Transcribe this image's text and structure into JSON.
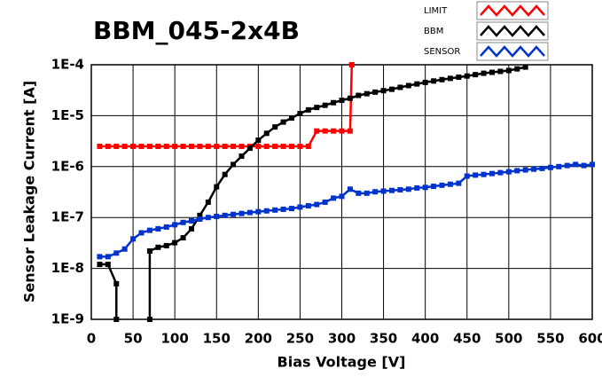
{
  "chart_data": {
    "type": "line",
    "title": "BBM_045-2x4B",
    "xlabel": "Bias Voltage [V]",
    "ylabel": "Sensor Leakage Current [A]",
    "xlim": [
      0,
      600
    ],
    "xticks": [
      0,
      50,
      100,
      150,
      200,
      250,
      300,
      350,
      400,
      450,
      500,
      550,
      600
    ],
    "ylim": [
      1e-09,
      0.0001
    ],
    "log_y": true,
    "grid": true,
    "legend": "top-right",
    "yticks": [
      {
        "value": 1e-09,
        "label": "1E-9"
      },
      {
        "value": 1e-08,
        "label": "1E-8"
      },
      {
        "value": 1e-07,
        "label": "1E-7"
      },
      {
        "value": 1e-06,
        "label": "1E-6"
      },
      {
        "value": 1e-05,
        "label": "1E-5"
      },
      {
        "value": 0.0001,
        "label": "1E-4"
      }
    ],
    "series": [
      {
        "name": "LIMIT",
        "color": "#ff0000",
        "x": [
          10,
          20,
          30,
          40,
          50,
          60,
          70,
          80,
          90,
          100,
          110,
          120,
          130,
          140,
          150,
          160,
          170,
          180,
          190,
          200,
          210,
          220,
          230,
          240,
          250,
          260,
          270,
          280,
          290,
          300,
          310,
          312
        ],
        "values": [
          2.5e-06,
          2.5e-06,
          2.5e-06,
          2.5e-06,
          2.5e-06,
          2.5e-06,
          2.5e-06,
          2.5e-06,
          2.5e-06,
          2.5e-06,
          2.5e-06,
          2.5e-06,
          2.5e-06,
          2.5e-06,
          2.5e-06,
          2.5e-06,
          2.5e-06,
          2.5e-06,
          2.5e-06,
          2.5e-06,
          2.5e-06,
          2.5e-06,
          2.5e-06,
          2.5e-06,
          2.5e-06,
          2.5e-06,
          5e-06,
          5e-06,
          5e-06,
          5e-06,
          5e-06,
          0.0001
        ]
      },
      {
        "name": "BBM",
        "color": "#000000",
        "x": [
          10,
          20,
          30,
          30,
          null,
          70,
          70,
          80,
          90,
          100,
          110,
          120,
          130,
          140,
          150,
          160,
          170,
          180,
          190,
          200,
          210,
          220,
          230,
          240,
          250,
          260,
          270,
          280,
          290,
          300,
          310,
          320,
          330,
          340,
          350,
          360,
          370,
          380,
          390,
          400,
          410,
          420,
          430,
          440,
          450,
          460,
          470,
          480,
          490,
          500,
          510,
          520
        ],
        "values": [
          1.2e-08,
          1.2e-08,
          5e-09,
          1e-09,
          null,
          1e-09,
          2.2e-08,
          2.6e-08,
          2.8e-08,
          3.2e-08,
          4e-08,
          6e-08,
          1.1e-07,
          2e-07,
          4e-07,
          7e-07,
          1.1e-06,
          1.6e-06,
          2.3e-06,
          3.3e-06,
          4.5e-06,
          6e-06,
          7.5e-06,
          9e-06,
          1.1e-05,
          1.3e-05,
          1.45e-05,
          1.6e-05,
          1.8e-05,
          2e-05,
          2.2e-05,
          2.5e-05,
          2.7e-05,
          2.9e-05,
          3.1e-05,
          3.3e-05,
          3.6e-05,
          3.9e-05,
          4.2e-05,
          4.5e-05,
          4.8e-05,
          5.1e-05,
          5.4e-05,
          5.7e-05,
          6e-05,
          6.4e-05,
          6.8e-05,
          7.1e-05,
          7.4e-05,
          7.7e-05,
          8.3e-05,
          9e-05
        ]
      },
      {
        "name": "SENSOR",
        "color": "#0033cc",
        "x": [
          10,
          20,
          30,
          40,
          50,
          60,
          70,
          80,
          90,
          100,
          110,
          120,
          130,
          140,
          150,
          160,
          170,
          180,
          190,
          200,
          210,
          220,
          230,
          240,
          250,
          260,
          270,
          280,
          290,
          300,
          310,
          320,
          330,
          340,
          350,
          360,
          370,
          380,
          390,
          400,
          410,
          420,
          430,
          440,
          450,
          460,
          470,
          480,
          490,
          500,
          510,
          520,
          530,
          540,
          550,
          560,
          570,
          580,
          590,
          600
        ],
        "values": [
          1.7e-08,
          1.7e-08,
          2e-08,
          2.4e-08,
          3.8e-08,
          5e-08,
          5.6e-08,
          6e-08,
          6.5e-08,
          7.2e-08,
          8e-08,
          8.6e-08,
          9.3e-08,
          1e-07,
          1.05e-07,
          1.1e-07,
          1.15e-07,
          1.2e-07,
          1.25e-07,
          1.3e-07,
          1.35e-07,
          1.4e-07,
          1.45e-07,
          1.5e-07,
          1.6e-07,
          1.7e-07,
          1.8e-07,
          2e-07,
          2.4e-07,
          2.6e-07,
          3.6e-07,
          3e-07,
          3e-07,
          3.2e-07,
          3.3e-07,
          3.4e-07,
          3.5e-07,
          3.6e-07,
          3.8e-07,
          3.9e-07,
          4.1e-07,
          4.3e-07,
          4.5e-07,
          4.7e-07,
          6.5e-07,
          6.8e-07,
          7e-07,
          7.3e-07,
          7.6e-07,
          7.9e-07,
          8.3e-07,
          8.6e-07,
          8.9e-07,
          9.2e-07,
          9.6e-07,
          1e-06,
          1.05e-06,
          1.1e-06,
          1.05e-06,
          1.1e-06
        ]
      }
    ]
  }
}
